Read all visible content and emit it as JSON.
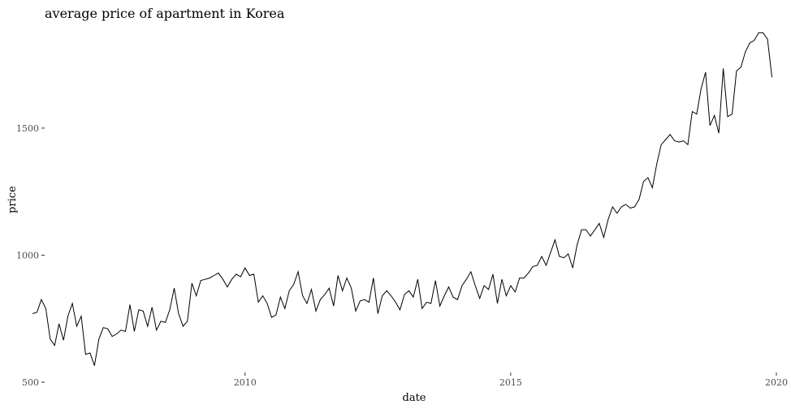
{
  "chart_data": {
    "type": "line",
    "title": "average price of apartment in Korea",
    "xlabel": "date",
    "ylabel": "price",
    "x_ticks": [
      "2010",
      "2015",
      "2020"
    ],
    "y_ticks": [
      "500",
      "1000",
      "1500"
    ],
    "xlim": [
      "2006-01",
      "2020-01"
    ],
    "ylim": [
      500,
      1870
    ],
    "grid": false,
    "legend": "none",
    "line_color": "#000000",
    "series": [
      {
        "x": [
          "2006-01",
          "2006-02",
          "2006-03",
          "2006-04",
          "2006-05",
          "2006-06",
          "2006-07",
          "2006-08",
          "2006-09",
          "2006-10",
          "2006-11",
          "2006-12",
          "2007-01",
          "2007-02",
          "2007-03",
          "2007-04",
          "2007-05",
          "2007-06",
          "2007-07",
          "2007-08",
          "2007-09",
          "2007-10",
          "2007-11",
          "2007-12",
          "2008-01",
          "2008-02",
          "2008-03",
          "2008-04",
          "2008-05",
          "2008-06",
          "2008-07",
          "2008-08",
          "2008-09",
          "2008-10",
          "2008-11",
          "2008-12",
          "2009-01",
          "2009-02",
          "2009-03",
          "2009-04",
          "2009-05",
          "2009-06",
          "2009-07",
          "2009-08",
          "2009-09",
          "2009-10",
          "2009-11",
          "2009-12",
          "2010-01",
          "2010-02",
          "2010-03",
          "2010-04",
          "2010-05",
          "2010-06",
          "2010-07",
          "2010-08",
          "2010-09",
          "2010-10",
          "2010-11",
          "2010-12",
          "2011-01",
          "2011-02",
          "2011-03",
          "2011-04",
          "2011-05",
          "2011-06",
          "2011-07",
          "2011-08",
          "2011-09",
          "2011-10",
          "2011-11",
          "2011-12",
          "2012-01",
          "2012-02",
          "2012-03",
          "2012-04",
          "2012-05",
          "2012-06",
          "2012-07",
          "2012-08",
          "2012-09",
          "2012-10",
          "2012-11",
          "2012-12",
          "2013-01",
          "2013-02",
          "2013-03",
          "2013-04",
          "2013-05",
          "2013-06",
          "2013-07",
          "2013-08",
          "2013-09",
          "2013-10",
          "2013-11",
          "2013-12",
          "2014-01",
          "2014-02",
          "2014-03",
          "2014-04",
          "2014-05",
          "2014-06",
          "2014-07",
          "2014-08",
          "2014-09",
          "2014-10",
          "2014-11",
          "2014-12",
          "2015-01",
          "2015-02",
          "2015-03",
          "2015-04",
          "2015-05",
          "2015-06",
          "2015-07",
          "2015-08",
          "2015-09",
          "2015-10",
          "2015-11",
          "2015-12",
          "2016-01",
          "2016-02",
          "2016-03",
          "2016-04",
          "2016-05",
          "2016-06",
          "2016-07",
          "2016-08",
          "2016-09",
          "2016-10",
          "2016-11",
          "2016-12",
          "2017-01",
          "2017-02",
          "2017-03",
          "2017-04",
          "2017-05",
          "2017-06",
          "2017-07",
          "2017-08",
          "2017-09",
          "2017-10",
          "2017-11",
          "2017-12",
          "2018-01",
          "2018-02",
          "2018-03",
          "2018-04",
          "2018-05",
          "2018-06",
          "2018-07",
          "2018-08",
          "2018-09",
          "2018-10",
          "2018-11",
          "2018-12",
          "2019-01",
          "2019-02",
          "2019-03",
          "2019-04",
          "2019-05",
          "2019-06",
          "2019-07",
          "2019-08",
          "2019-09",
          "2019-10",
          "2019-11",
          "2019-12"
        ],
        "y": [
          770,
          775,
          825,
          790,
          670,
          645,
          730,
          665,
          760,
          810,
          720,
          760,
          610,
          615,
          565,
          670,
          715,
          710,
          680,
          690,
          705,
          700,
          805,
          700,
          785,
          780,
          720,
          795,
          705,
          740,
          735,
          785,
          870,
          770,
          720,
          740,
          890,
          840,
          900,
          905,
          910,
          920,
          930,
          905,
          875,
          905,
          925,
          915,
          950,
          920,
          925,
          815,
          840,
          810,
          755,
          765,
          835,
          790,
          860,
          885,
          935,
          840,
          810,
          865,
          780,
          825,
          845,
          870,
          800,
          920,
          860,
          910,
          870,
          780,
          820,
          825,
          815,
          910,
          770,
          840,
          860,
          840,
          815,
          785,
          845,
          860,
          835,
          905,
          790,
          815,
          810,
          900,
          800,
          840,
          875,
          835,
          825,
          880,
          905,
          935,
          880,
          830,
          880,
          865,
          925,
          810,
          905,
          840,
          880,
          855,
          910,
          910,
          930,
          955,
          960,
          995,
          960,
          1010,
          1060,
          995,
          990,
          1005,
          950,
          1040,
          1100,
          1100,
          1075,
          1100,
          1125,
          1070,
          1140,
          1190,
          1165,
          1190,
          1200,
          1185,
          1190,
          1220,
          1290,
          1305,
          1265,
          1360,
          1435,
          1455,
          1475,
          1450,
          1445,
          1450,
          1435,
          1565,
          1555,
          1655,
          1720,
          1510,
          1550,
          1480,
          1735,
          1545,
          1555,
          1725,
          1740,
          1800,
          1835,
          1845,
          1875,
          1875,
          1850,
          1700
        ]
      }
    ]
  }
}
